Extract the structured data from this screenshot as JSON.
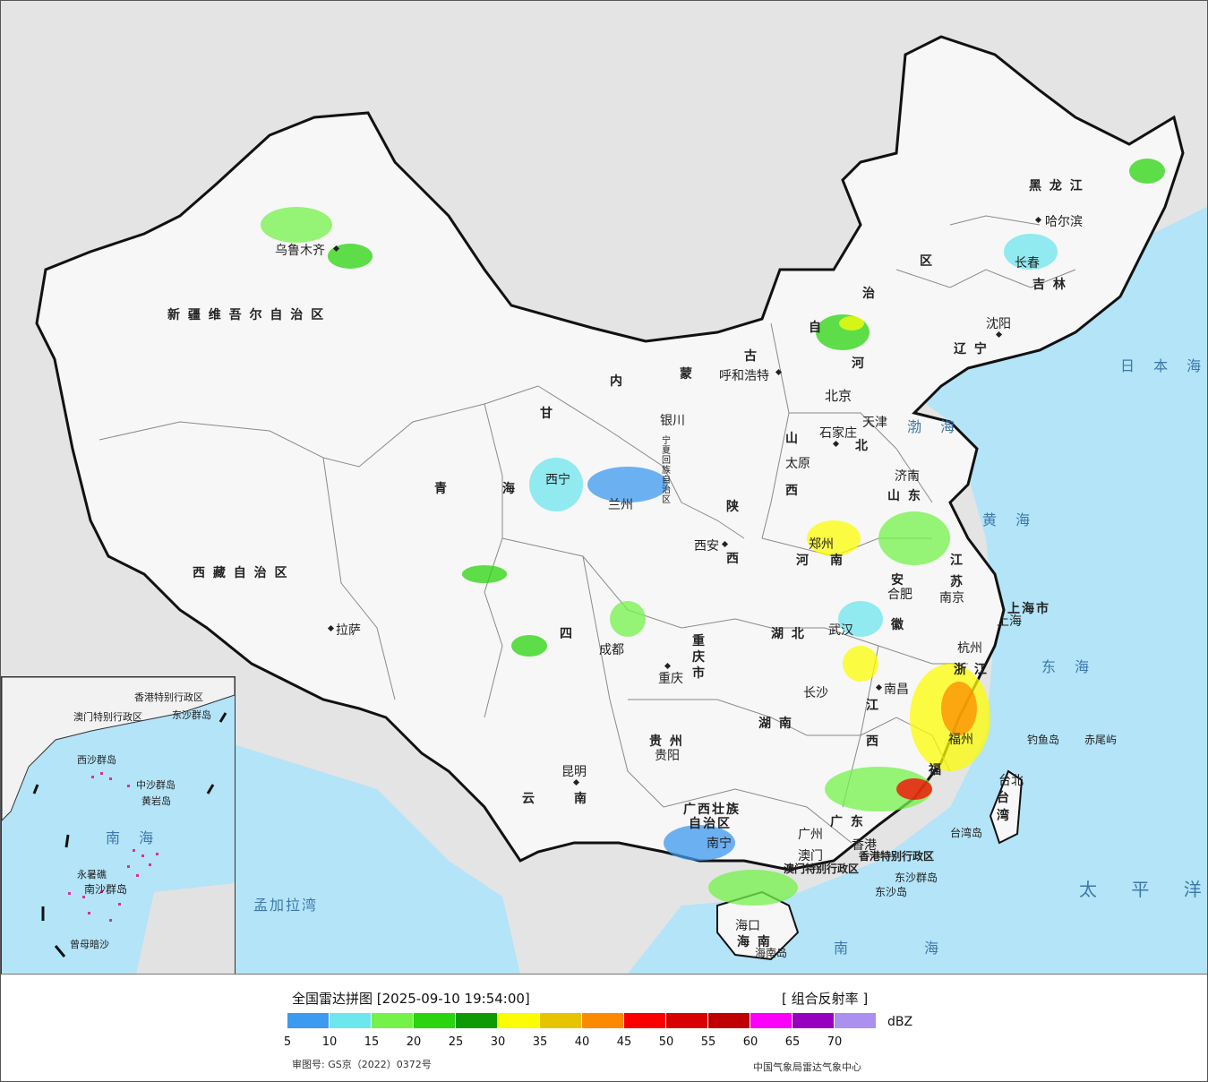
{
  "legend": {
    "title": "全国雷达拼图 [2025-09-10 19:54:00]",
    "product": "[ 组合反射率 ]",
    "unit": "dBZ",
    "ticks": [
      "5",
      "10",
      "15",
      "20",
      "25",
      "30",
      "35",
      "40",
      "45",
      "50",
      "55",
      "60",
      "65",
      "70"
    ],
    "colors": [
      "#3c9af0",
      "#6ee6ee",
      "#74f24a",
      "#2ad40e",
      "#0e9a06",
      "#fcfc06",
      "#e6c400",
      "#fc8a00",
      "#fa0000",
      "#d80000",
      "#c00000",
      "#fa00fa",
      "#9800c0",
      "#ac90f0"
    ],
    "approval": "审图号: GS京（2022）0372号",
    "credit": "中国气象局雷达气象中心"
  },
  "colors": {
    "land": "#f7f7f7",
    "foreign_land": "#e2e2e2",
    "sea": "#b3e4f8",
    "border": "#111111",
    "province_border": "#8a8a8a"
  },
  "regions": {
    "xinjiang": "新 疆 维 吾 尔 自 治 区",
    "tibet": "西 藏 自 治 区",
    "qinghai_a": "青",
    "qinghai_b": "海",
    "gansu": "甘",
    "sichuan": "四",
    "yunnan_a": "云",
    "yunnan_b": "南",
    "guizhou": "贵 州",
    "chongqing": "重 庆 市",
    "ningxia": "宁夏回族自治区",
    "shaanxi_a": "陕",
    "shaanxi_b": "西",
    "shanxi_a": "山",
    "shanxi_b": "西",
    "inner_mongolia_a": "内",
    "inner_mongolia_b": "蒙",
    "inner_mongolia_c": "古",
    "inner_mongolia_d": "自",
    "inner_mongolia_e": "治",
    "inner_mongolia_f": "区",
    "heilongjiang": "黑 龙 江",
    "jilin": "吉 林",
    "liaoning": "辽 宁",
    "hebei_a": "河",
    "hebei_b": "北",
    "henan_a": "河",
    "henan_b": "南",
    "shandong": "山 东",
    "jiangsu_a": "江",
    "jiangsu_b": "苏",
    "anhui_a": "安",
    "anhui_b": "徽",
    "hubei": "湖 北",
    "hunan": "湖 南",
    "jiangxi_a": "江",
    "jiangxi_b": "西",
    "zhejiang": "浙 江",
    "fujian": "福",
    "guangdong": "广 东",
    "guangxi_a": "广西壮族",
    "guangxi_b": "自治区",
    "hainan": "海 南",
    "taiwan": "台 湾",
    "shanghai": "上海市",
    "hk": "香港特别行政区",
    "macao": "澳门特别行政区"
  },
  "cities": {
    "urumqi": "乌鲁木齐",
    "lhasa": "拉萨",
    "xining": "西宁",
    "lanzhou": "兰州",
    "yinchuan": "银川",
    "xian": "西安",
    "chengdu": "成都",
    "chongqing": "重庆",
    "guiyang": "贵阳",
    "kunming": "昆明",
    "nanning": "南宁",
    "hohhot": "呼和浩特",
    "beijing": "北京",
    "tianjin": "天津",
    "shijiazhuang": "石家庄",
    "taiyuan": "太原",
    "zhengzhou": "郑州",
    "jinan": "济南",
    "hefei": "合肥",
    "nanjing": "南京",
    "shanghai": "上海",
    "hangzhou": "杭州",
    "wuhan": "武汉",
    "changsha": "长沙",
    "nanchang": "南昌",
    "fuzhou": "福州",
    "taibei": "台北",
    "guangzhou": "广州",
    "macau": "澳门",
    "hongkong": "香港",
    "haikou": "海口",
    "shenyang": "沈阳",
    "changchun": "长春",
    "harbin": "哈尔滨"
  },
  "seas": {
    "bohai": "渤 海",
    "huanghai": "黄 海",
    "donghai": "东 海",
    "nanhai": "南 海",
    "japan_sea": "日 本 海",
    "pacific": "太 平 洋",
    "bengal": "孟加拉湾"
  },
  "islands": {
    "diaoyu": "钓鱼岛",
    "chiwei": "赤尾屿",
    "taiwan_island": "台湾岛",
    "dongsha_islands": "东沙群岛",
    "dongsha": "东沙岛",
    "hainan_island": "海南岛"
  },
  "inset": {
    "hk": "香港特别行政区",
    "macao": "澳门特别行政区",
    "dongsha": "东沙群岛",
    "xisha": "西沙群岛",
    "zhongsha": "中沙群岛",
    "nansha": "南沙群岛",
    "huangyan": "黄岩岛",
    "nanhai": "南 海",
    "yongshu": "永暑礁",
    "zengmu": "曾母暗沙"
  }
}
